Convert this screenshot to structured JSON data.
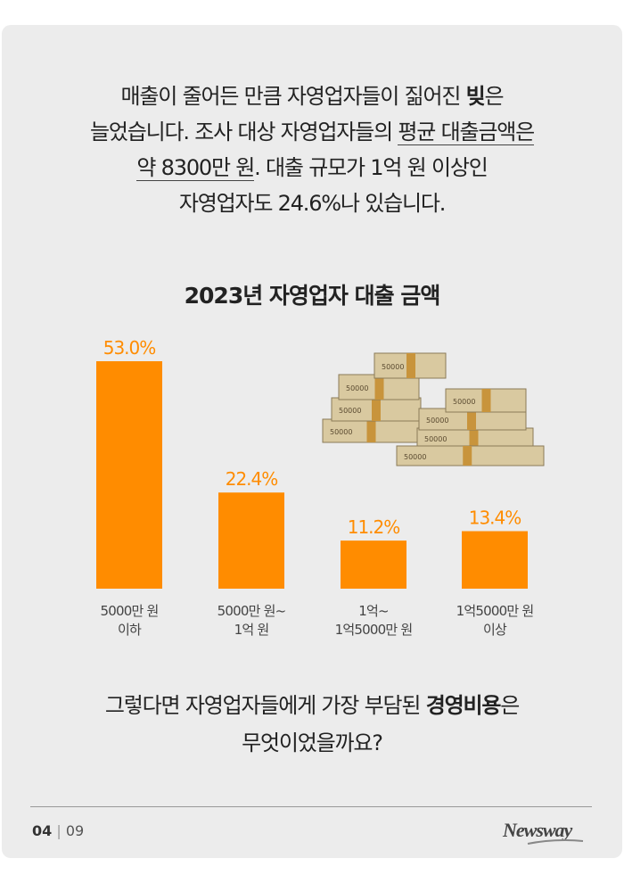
{
  "intro": {
    "line1_a": "매출이 줄어든 만큼 자영업자들이 짊어진 ",
    "line1_bold": "빚",
    "line1_b": "은",
    "line2_a": "늘었습니다. 조사 대상 자영업자들의 ",
    "line2_u": "평균 대출금액은",
    "line3_u": "약 8300만 원",
    "line3_b": ". 대출 규모가 1억 원 이상인",
    "line4": "자영업자도 24.6%나 있습니다."
  },
  "chart_data": {
    "type": "bar",
    "title": "2023년 자영업자 대출 금액",
    "categories": [
      [
        "5000만 원",
        "이하"
      ],
      [
        "5000만 원~",
        "1억 원"
      ],
      [
        "1억~",
        "1억5000만 원"
      ],
      [
        "1억5000만 원",
        "이상"
      ]
    ],
    "values": [
      53.0,
      22.4,
      11.2,
      13.4
    ],
    "labels": [
      "53.0%",
      "22.4%",
      "11.2%",
      "13.4%"
    ],
    "ylim": [
      0,
      60
    ],
    "grid": false,
    "color": "#ff8c00"
  },
  "question": {
    "line1_a": "그렇다면 자영업자들에게 가장 부담된 ",
    "line1_bold": "경영비용",
    "line1_b": "은",
    "line2": "무엇이었을까요?"
  },
  "footer": {
    "page": "04",
    "sep": "|",
    "total": "09",
    "logo": "Newsway"
  },
  "illustration": {
    "banknote_text": "50000"
  }
}
